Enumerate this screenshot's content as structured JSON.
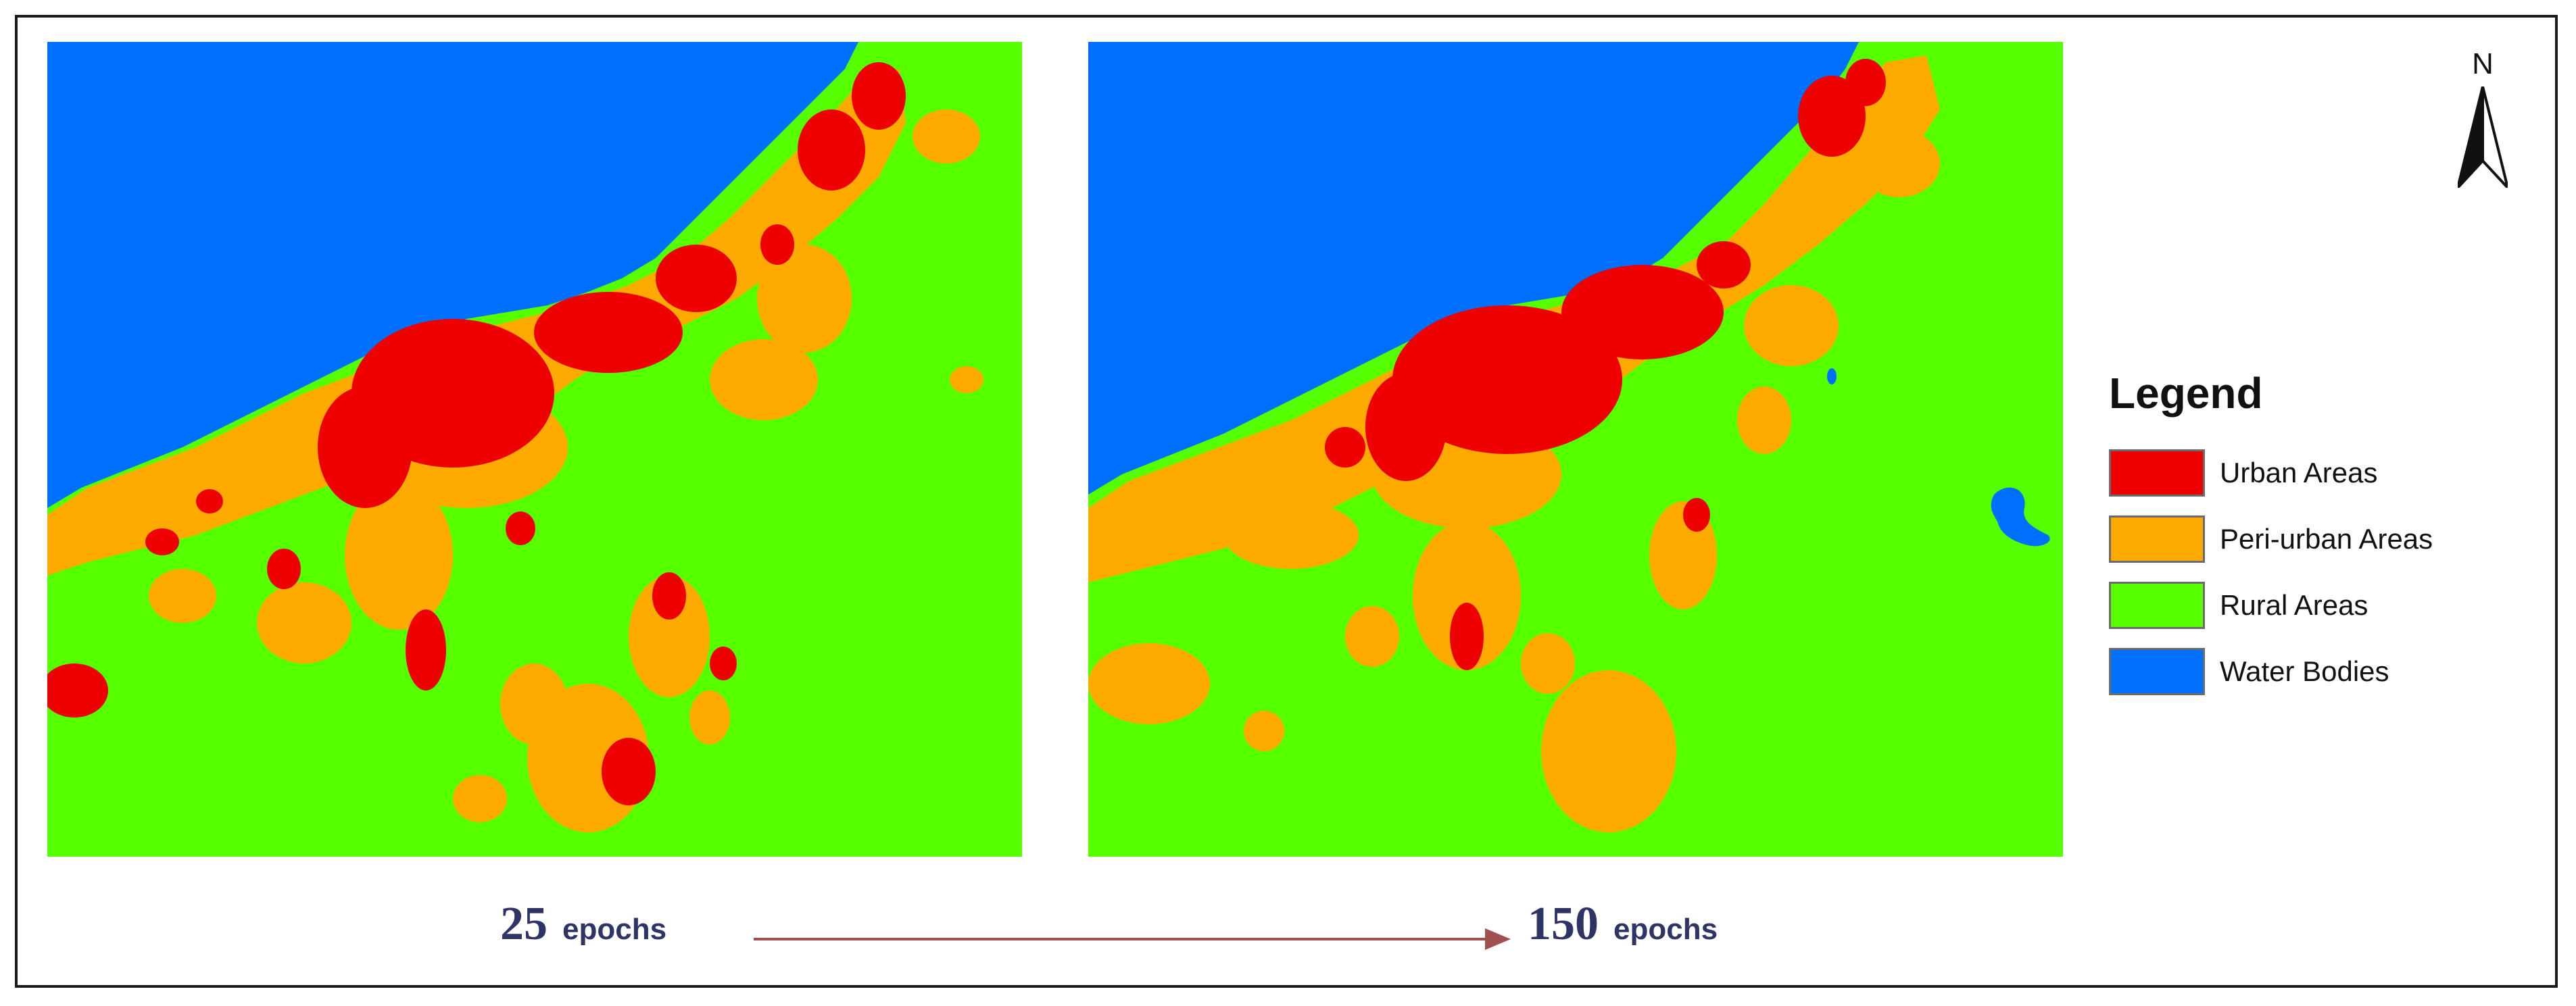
{
  "north_label": "N",
  "legend": {
    "title": "Legend",
    "items": [
      {
        "label": "Urban Areas",
        "color": "#ee0000"
      },
      {
        "label": "Peri-urban Areas",
        "color": "#ffaa00"
      },
      {
        "label": "Rural Areas",
        "color": "#55ff00"
      },
      {
        "label": "Water Bodies",
        "color": "#0070ff"
      }
    ]
  },
  "colors": {
    "urban": "#ee0000",
    "peri_urban": "#ffaa00",
    "rural": "#55ff00",
    "water": "#0070ff",
    "arrow": "#a05050",
    "epoch_text": "#2e3466"
  },
  "maps": [
    {
      "epochs": "25",
      "unit": "epochs"
    },
    {
      "epochs": "150",
      "unit": "epochs"
    }
  ]
}
